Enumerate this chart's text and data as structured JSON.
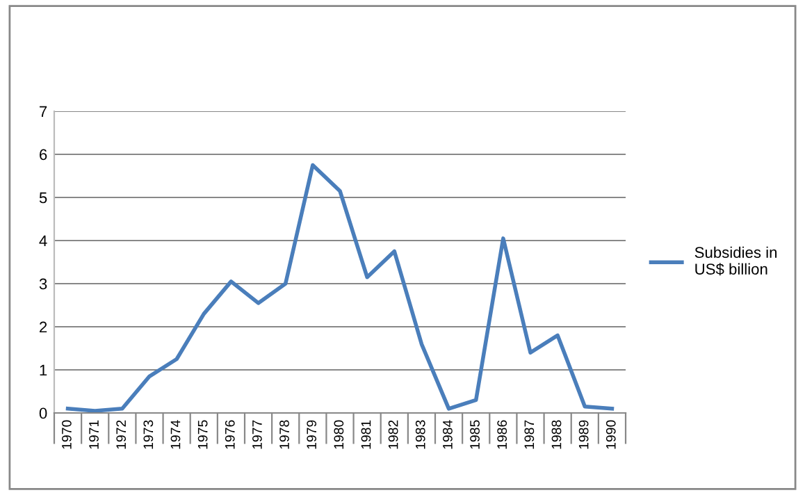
{
  "chart_data": {
    "type": "line",
    "categories": [
      "1970",
      "1971",
      "1972",
      "1973",
      "1974",
      "1975",
      "1976",
      "1977",
      "1978",
      "1979",
      "1980",
      "1981",
      "1982",
      "1983",
      "1984",
      "1985",
      "1986",
      "1987",
      "1988",
      "1989",
      "1990"
    ],
    "series": [
      {
        "name": "Subsidies in\nUS$ billion",
        "color": "#4a7ebb",
        "values": [
          0.1,
          0.05,
          0.1,
          0.85,
          1.25,
          2.3,
          3.05,
          2.55,
          3.0,
          5.75,
          5.15,
          3.15,
          3.75,
          1.6,
          0.1,
          0.3,
          4.05,
          1.4,
          1.8,
          0.15,
          0.1
        ]
      }
    ],
    "ylim": [
      0,
      7
    ],
    "yticks": [
      0,
      1,
      2,
      3,
      4,
      5,
      6,
      7
    ],
    "grid": "y",
    "legend": "right",
    "marker": "none",
    "line_style": "solid"
  }
}
